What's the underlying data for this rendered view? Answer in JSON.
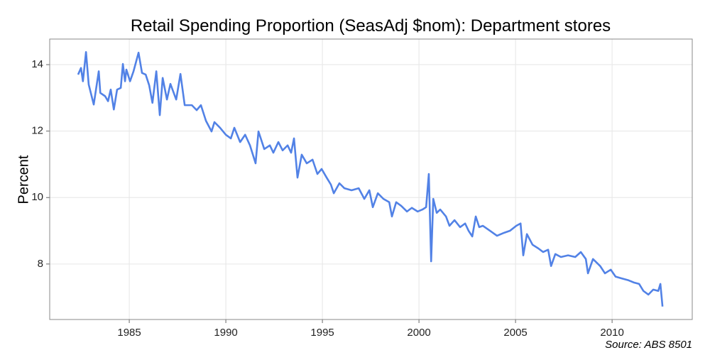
{
  "chart_data": {
    "type": "line",
    "title": "Retail Spending Proportion (SeasAdj $nom): Department stores",
    "ylabel": "Percent",
    "caption": "Source: ABS 8501",
    "xlim": [
      1980.88,
      2014.15
    ],
    "xticks": [
      1985,
      1990,
      1995,
      2000,
      2005,
      2010
    ],
    "ylim": [
      6.33,
      14.77
    ],
    "yticks": [
      8,
      10,
      12,
      14
    ],
    "grid": true,
    "series": [
      {
        "name": "Department stores",
        "color": "#5282e6",
        "x": [
          1982.35,
          1982.5,
          1982.6,
          1982.76,
          1982.9,
          1983.16,
          1983.42,
          1983.5,
          1983.75,
          1983.9,
          1984.04,
          1984.2,
          1984.37,
          1984.56,
          1984.67,
          1984.78,
          1984.85,
          1985.04,
          1985.22,
          1985.48,
          1985.66,
          1985.85,
          1986.03,
          1986.2,
          1986.4,
          1986.58,
          1986.73,
          1986.95,
          1987.13,
          1987.43,
          1987.65,
          1987.87,
          1988.24,
          1988.49,
          1988.71,
          1988.97,
          1989.26,
          1989.41,
          1989.7,
          1990.0,
          1990.26,
          1990.44,
          1990.74,
          1991.0,
          1991.25,
          1991.54,
          1991.69,
          1991.99,
          1992.28,
          1992.46,
          1992.72,
          1992.94,
          1993.2,
          1993.38,
          1993.53,
          1993.71,
          1993.93,
          1994.19,
          1994.49,
          1994.74,
          1994.96,
          1995.22,
          1995.44,
          1995.59,
          1995.88,
          1996.14,
          1996.51,
          1996.88,
          1997.17,
          1997.43,
          1997.61,
          1997.87,
          1998.16,
          1998.46,
          1998.6,
          1998.82,
          1999.08,
          1999.38,
          1999.63,
          1999.93,
          2000.18,
          2000.37,
          2000.51,
          2000.63,
          2000.74,
          2000.92,
          2001.1,
          2001.4,
          2001.58,
          2001.84,
          2002.13,
          2002.39,
          2002.57,
          2002.76,
          2002.94,
          2003.12,
          2003.31,
          2003.68,
          2004.04,
          2004.41,
          2004.71,
          2005.04,
          2005.26,
          2005.4,
          2005.59,
          2005.88,
          2006.18,
          2006.43,
          2006.69,
          2006.84,
          2007.06,
          2007.35,
          2007.72,
          2008.09,
          2008.38,
          2008.64,
          2008.75,
          2009.01,
          2009.38,
          2009.63,
          2009.93,
          2010.18,
          2010.48,
          2010.85,
          2011.14,
          2011.4,
          2011.62,
          2011.88,
          2012.13,
          2012.39,
          2012.5,
          2012.61
        ],
        "values": [
          13.7,
          13.9,
          13.5,
          14.38,
          13.4,
          12.8,
          13.8,
          13.15,
          13.05,
          12.9,
          13.25,
          12.65,
          13.25,
          13.3,
          14.02,
          13.5,
          13.85,
          13.5,
          13.8,
          14.36,
          13.75,
          13.7,
          13.38,
          12.85,
          13.8,
          12.48,
          13.6,
          12.95,
          13.42,
          12.95,
          13.72,
          12.78,
          12.78,
          12.63,
          12.78,
          12.31,
          11.99,
          12.27,
          12.1,
          11.89,
          11.78,
          12.1,
          11.67,
          11.89,
          11.57,
          11.03,
          11.99,
          11.46,
          11.57,
          11.35,
          11.67,
          11.42,
          11.57,
          11.35,
          11.78,
          10.6,
          11.29,
          11.03,
          11.14,
          10.71,
          10.86,
          10.6,
          10.39,
          10.13,
          10.43,
          10.28,
          10.22,
          10.28,
          9.96,
          10.22,
          9.71,
          10.13,
          9.96,
          9.86,
          9.43,
          9.86,
          9.75,
          9.58,
          9.69,
          9.58,
          9.64,
          9.71,
          10.71,
          8.08,
          9.96,
          9.54,
          9.64,
          9.43,
          9.15,
          9.32,
          9.11,
          9.22,
          9.0,
          8.83,
          9.43,
          9.11,
          9.15,
          9.0,
          8.85,
          8.94,
          9.0,
          9.15,
          9.22,
          8.26,
          8.9,
          8.58,
          8.47,
          8.36,
          8.43,
          7.94,
          8.3,
          8.21,
          8.26,
          8.21,
          8.36,
          8.15,
          7.72,
          8.15,
          7.94,
          7.72,
          7.83,
          7.62,
          7.57,
          7.51,
          7.44,
          7.4,
          7.19,
          7.08,
          7.23,
          7.19,
          7.4,
          6.72
        ]
      }
    ]
  }
}
